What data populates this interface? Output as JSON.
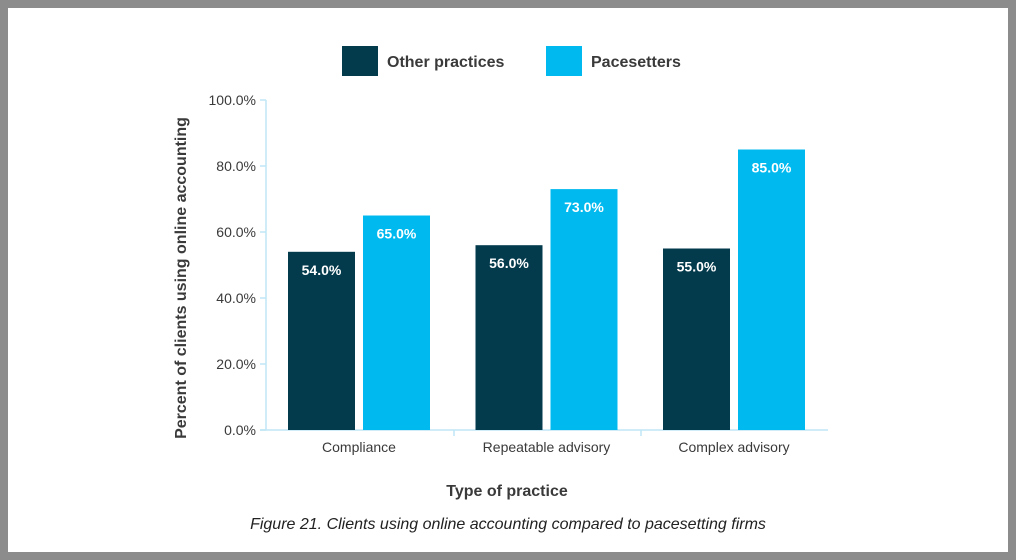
{
  "chart_data": {
    "type": "bar",
    "categories": [
      "Compliance",
      "Repeatable advisory",
      "Complex advisory"
    ],
    "series": [
      {
        "name": "Other practices",
        "values": [
          54.0,
          56.0,
          55.0
        ],
        "color": "#033a4c"
      },
      {
        "name": "Pacesetters",
        "values": [
          65.0,
          73.0,
          85.0
        ],
        "color": "#00b9ef"
      }
    ],
    "data_labels": [
      [
        "54.0%",
        "56.0%",
        "55.0%"
      ],
      [
        "65.0%",
        "73.0%",
        "85.0%"
      ]
    ],
    "yticks": [
      0,
      20,
      40,
      60,
      80,
      100
    ],
    "ytick_labels": [
      "0.0%",
      "20.0%",
      "40.0%",
      "60.0%",
      "80.0%",
      "100.0%"
    ],
    "ylim": [
      0,
      100
    ],
    "xlabel": "Type of practice",
    "ylabel": "Percent of clients using online accounting",
    "legend_position": "top-center",
    "grid": false,
    "axis_color": "#bfe6f5",
    "caption": "Figure 21. Clients using online accounting compared to pacesetting firms"
  }
}
